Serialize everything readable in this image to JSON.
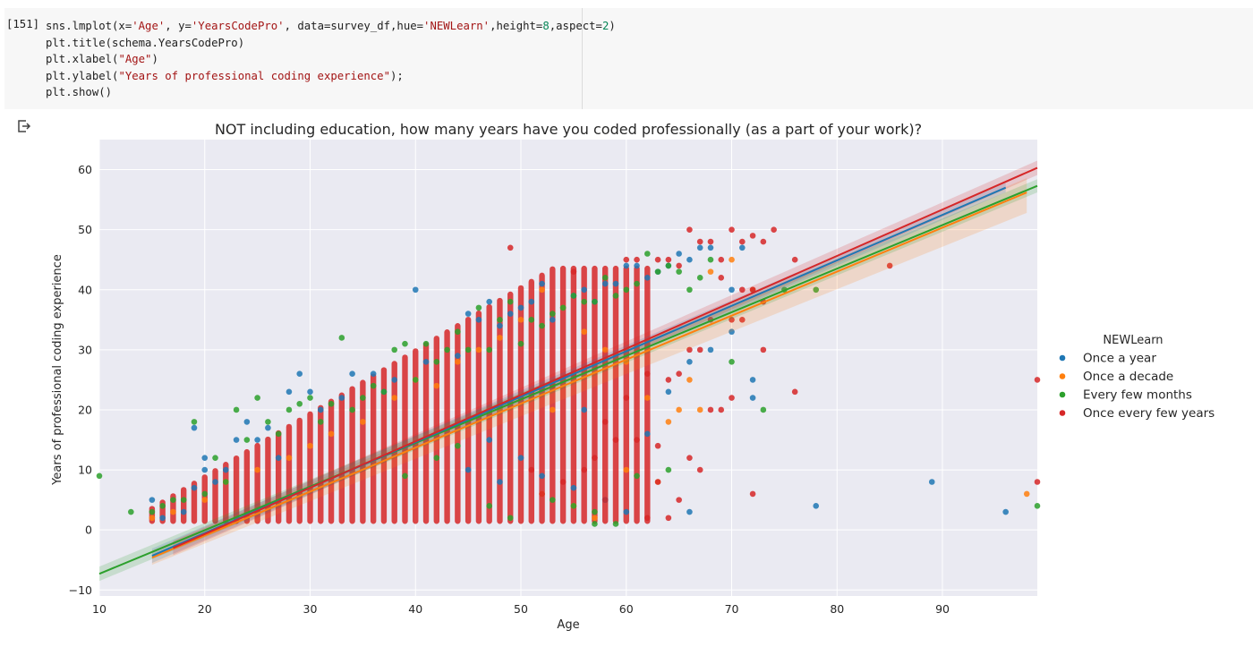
{
  "cell": {
    "prompt": "[151]",
    "code_lines": [
      [
        {
          "t": "sns.lmplot(x="
        },
        {
          "t": "'Age'",
          "c": "str"
        },
        {
          "t": ", y="
        },
        {
          "t": "'YearsCodePro'",
          "c": "str"
        },
        {
          "t": ", data=survey_df,hue="
        },
        {
          "t": "'NEWLearn'",
          "c": "str"
        },
        {
          "t": ",height="
        },
        {
          "t": "8",
          "c": "num"
        },
        {
          "t": ",aspect="
        },
        {
          "t": "2",
          "c": "num"
        },
        {
          "t": ")"
        }
      ],
      [
        {
          "t": "plt.title(schema.YearsCodePro)"
        }
      ],
      [
        {
          "t": "plt.xlabel("
        },
        {
          "t": "\"Age\"",
          "c": "str"
        },
        {
          "t": ")"
        }
      ],
      [
        {
          "t": "plt.ylabel("
        },
        {
          "t": "\"Years of professional coding experience\"",
          "c": "str"
        },
        {
          "t": ");"
        }
      ],
      [
        {
          "t": "plt.show()"
        }
      ]
    ]
  },
  "output_icon": "output-redirect-icon",
  "chart_data": {
    "type": "scatter",
    "title": "NOT including education, how many years have you coded professionally (as a part of your work)?",
    "xlabel": "Age",
    "ylabel": "Years of professional coding experience",
    "xlim": [
      10,
      99
    ],
    "ylim": [
      -11,
      65
    ],
    "xticks": [
      "10",
      "20",
      "30",
      "40",
      "50",
      "60",
      "70",
      "80",
      "90"
    ],
    "yticks": [
      "−10",
      "0",
      "10",
      "20",
      "30",
      "40",
      "50",
      "60"
    ],
    "grid": true,
    "legend": {
      "title": "NEWLearn",
      "placement": "right",
      "entries": [
        "Once a year",
        "Once a decade",
        "Every few months",
        "Once every few years"
      ]
    },
    "colors": [
      "#1f77b4",
      "#ff7f0e",
      "#2ca02c",
      "#d62728"
    ],
    "series": [
      {
        "name": "Once a year",
        "color": "#1f77b4",
        "regression": {
          "x": [
            15,
            96
          ],
          "y": [
            -4.3,
            57.0
          ],
          "ci_upper_end": 57.8,
          "ci_lower_end": 56.2
        },
        "points": [
          [
            15,
            5
          ],
          [
            16,
            2
          ],
          [
            18,
            3
          ],
          [
            19,
            17
          ],
          [
            19,
            7
          ],
          [
            20,
            12
          ],
          [
            20,
            10
          ],
          [
            21,
            8
          ],
          [
            22,
            10
          ],
          [
            23,
            15
          ],
          [
            24,
            18
          ],
          [
            25,
            15
          ],
          [
            26,
            17
          ],
          [
            27,
            12
          ],
          [
            28,
            23
          ],
          [
            29,
            26
          ],
          [
            30,
            23
          ],
          [
            31,
            20
          ],
          [
            33,
            22
          ],
          [
            34,
            26
          ],
          [
            36,
            26
          ],
          [
            37,
            23
          ],
          [
            38,
            25
          ],
          [
            40,
            40
          ],
          [
            41,
            28
          ],
          [
            44,
            29
          ],
          [
            45,
            36
          ],
          [
            46,
            35
          ],
          [
            47,
            38
          ],
          [
            48,
            34
          ],
          [
            49,
            36
          ],
          [
            50,
            37
          ],
          [
            51,
            38
          ],
          [
            52,
            41
          ],
          [
            53,
            35
          ],
          [
            54,
            37
          ],
          [
            55,
            39
          ],
          [
            56,
            40
          ],
          [
            57,
            38
          ],
          [
            58,
            41
          ],
          [
            59,
            41
          ],
          [
            60,
            44
          ],
          [
            61,
            44
          ],
          [
            62,
            42
          ],
          [
            63,
            43
          ],
          [
            64,
            44
          ],
          [
            65,
            46
          ],
          [
            66,
            45
          ],
          [
            67,
            47
          ],
          [
            68,
            47
          ],
          [
            70,
            40
          ],
          [
            71,
            47
          ],
          [
            72,
            25
          ],
          [
            72,
            22
          ],
          [
            66,
            3
          ],
          [
            78,
            4
          ],
          [
            89,
            8
          ],
          [
            96,
            3
          ],
          [
            50,
            12
          ],
          [
            52,
            9
          ],
          [
            55,
            7
          ],
          [
            58,
            5
          ],
          [
            60,
            3
          ],
          [
            62,
            16
          ],
          [
            64,
            23
          ],
          [
            66,
            28
          ],
          [
            68,
            30
          ],
          [
            70,
            33
          ],
          [
            45,
            10
          ],
          [
            48,
            8
          ],
          [
            47,
            15
          ],
          [
            56,
            20
          ]
        ]
      },
      {
        "name": "Once a decade",
        "color": "#ff7f0e",
        "regression": {
          "x": [
            15,
            98
          ],
          "y": [
            -4.6,
            56.2
          ],
          "ci_upper_end": 58.6,
          "ci_lower_end": 52.8
        },
        "points": [
          [
            15,
            2
          ],
          [
            17,
            3
          ],
          [
            20,
            5
          ],
          [
            22,
            8
          ],
          [
            25,
            10
          ],
          [
            28,
            12
          ],
          [
            30,
            14
          ],
          [
            32,
            16
          ],
          [
            35,
            18
          ],
          [
            38,
            22
          ],
          [
            40,
            25
          ],
          [
            42,
            24
          ],
          [
            44,
            28
          ],
          [
            46,
            30
          ],
          [
            48,
            32
          ],
          [
            50,
            35
          ],
          [
            52,
            40
          ],
          [
            54,
            37
          ],
          [
            56,
            33
          ],
          [
            58,
            30
          ],
          [
            60,
            28
          ],
          [
            62,
            22
          ],
          [
            64,
            18
          ],
          [
            65,
            20
          ],
          [
            66,
            25
          ],
          [
            67,
            20
          ],
          [
            68,
            43
          ],
          [
            70,
            45
          ],
          [
            72,
            40
          ],
          [
            57,
            2
          ],
          [
            52,
            6
          ],
          [
            55,
            4
          ],
          [
            48,
            20
          ],
          [
            63,
            8
          ],
          [
            98,
            6
          ],
          [
            53,
            20
          ],
          [
            60,
            10
          ]
        ]
      },
      {
        "name": "Every few months",
        "color": "#2ca02c",
        "regression": {
          "x": [
            10,
            99
          ],
          "y": [
            -7.3,
            57.3
          ],
          "ci_upper_end": 58.4,
          "ci_lower_end": 56.2
        },
        "points": [
          [
            10,
            9
          ],
          [
            13,
            3
          ],
          [
            15,
            3
          ],
          [
            16,
            4
          ],
          [
            17,
            5
          ],
          [
            18,
            5
          ],
          [
            19,
            18
          ],
          [
            20,
            6
          ],
          [
            21,
            12
          ],
          [
            22,
            8
          ],
          [
            23,
            20
          ],
          [
            24,
            15
          ],
          [
            25,
            22
          ],
          [
            26,
            18
          ],
          [
            27,
            16
          ],
          [
            28,
            20
          ],
          [
            29,
            21
          ],
          [
            30,
            22
          ],
          [
            31,
            18
          ],
          [
            32,
            21
          ],
          [
            33,
            32
          ],
          [
            34,
            20
          ],
          [
            35,
            22
          ],
          [
            36,
            24
          ],
          [
            37,
            23
          ],
          [
            38,
            30
          ],
          [
            39,
            31
          ],
          [
            40,
            25
          ],
          [
            41,
            31
          ],
          [
            42,
            28
          ],
          [
            43,
            30
          ],
          [
            44,
            33
          ],
          [
            45,
            30
          ],
          [
            46,
            37
          ],
          [
            47,
            30
          ],
          [
            48,
            35
          ],
          [
            49,
            38
          ],
          [
            50,
            31
          ],
          [
            51,
            35
          ],
          [
            52,
            34
          ],
          [
            53,
            36
          ],
          [
            54,
            37
          ],
          [
            55,
            39
          ],
          [
            56,
            38
          ],
          [
            57,
            38
          ],
          [
            58,
            42
          ],
          [
            59,
            39
          ],
          [
            60,
            40
          ],
          [
            61,
            41
          ],
          [
            62,
            46
          ],
          [
            63,
            43
          ],
          [
            64,
            44
          ],
          [
            65,
            43
          ],
          [
            66,
            40
          ],
          [
            67,
            42
          ],
          [
            68,
            45
          ],
          [
            70,
            28
          ],
          [
            73,
            20
          ],
          [
            75,
            40
          ],
          [
            78,
            40
          ],
          [
            99,
            4
          ],
          [
            57,
            1
          ],
          [
            59,
            1
          ],
          [
            61,
            9
          ],
          [
            64,
            10
          ],
          [
            55,
            4
          ],
          [
            57,
            3
          ],
          [
            53,
            5
          ],
          [
            49,
            2
          ],
          [
            47,
            4
          ],
          [
            44,
            14
          ],
          [
            42,
            12
          ],
          [
            39,
            9
          ]
        ]
      },
      {
        "name": "Once every few years",
        "color": "#d62728",
        "regression": {
          "x": [
            17,
            99
          ],
          "y": [
            -3.0,
            60.3
          ],
          "ci_upper_end": 61.5,
          "ci_lower_end": 59.1
        },
        "points": [
          [
            49,
            47
          ],
          [
            55,
            43
          ],
          [
            60,
            45
          ],
          [
            61,
            45
          ],
          [
            63,
            45
          ],
          [
            64,
            45
          ],
          [
            65,
            44
          ],
          [
            66,
            50
          ],
          [
            67,
            48
          ],
          [
            68,
            48
          ],
          [
            69,
            45
          ],
          [
            70,
            50
          ],
          [
            71,
            48
          ],
          [
            72,
            49
          ],
          [
            73,
            48
          ],
          [
            74,
            50
          ],
          [
            76,
            45
          ],
          [
            85,
            44
          ],
          [
            76,
            23
          ],
          [
            99,
            25
          ],
          [
            99,
            8
          ],
          [
            72,
            6
          ],
          [
            69,
            42
          ],
          [
            71,
            40
          ],
          [
            73,
            30
          ],
          [
            70,
            22
          ],
          [
            69,
            20
          ],
          [
            68,
            20
          ],
          [
            67,
            10
          ],
          [
            66,
            12
          ],
          [
            65,
            5
          ],
          [
            63,
            8
          ],
          [
            62,
            2
          ],
          [
            64,
            2
          ],
          [
            63,
            14
          ],
          [
            61,
            15
          ],
          [
            59,
            15
          ],
          [
            58,
            5
          ],
          [
            56,
            10
          ],
          [
            57,
            12
          ],
          [
            54,
            8
          ],
          [
            52,
            6
          ],
          [
            51,
            10
          ],
          [
            53,
            24
          ],
          [
            55,
            26
          ],
          [
            58,
            18
          ],
          [
            60,
            22
          ],
          [
            62,
            26
          ],
          [
            64,
            25
          ],
          [
            65,
            26
          ],
          [
            66,
            30
          ],
          [
            67,
            30
          ],
          [
            68,
            35
          ],
          [
            70,
            35
          ],
          [
            71,
            35
          ],
          [
            72,
            40
          ],
          [
            73,
            38
          ]
        ]
      }
    ]
  }
}
